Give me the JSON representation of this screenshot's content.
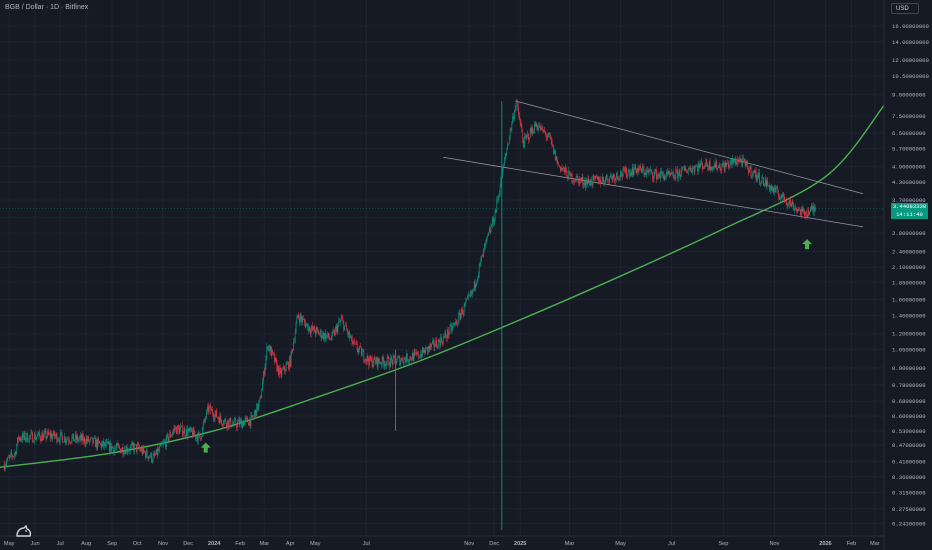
{
  "header": {
    "title": "BGB / Dollar · 1D · Bitfinex"
  },
  "price_scale": {
    "currency": "USD"
  },
  "last_price": {
    "value": "3.44083330",
    "countdown": "14:11:40"
  },
  "colors": {
    "background": "#161a25",
    "up": "#089981",
    "down": "#f23645",
    "curve": "#4caf50",
    "channel": "#9598a1",
    "arrow": "#4caf50",
    "text": "#b2b5be"
  },
  "icons": {
    "logo": "tradingview-logo-icon",
    "arrows": "up-arrow-icon"
  },
  "chart_data": {
    "type": "candlestick",
    "title": "BGB / Dollar · 1D · Bitfinex",
    "y_scale": "log",
    "ylim": [
      0.23,
      18
    ],
    "xlim": [
      "2023-04-20",
      "2026-03-12"
    ],
    "grid": true,
    "y_ticks": [
      "16.00000000",
      "14.00000000",
      "12.00000000",
      "10.50000000",
      "9.00000000",
      "7.50000000",
      "6.50000000",
      "5.70000000",
      "4.90000000",
      "4.30000000",
      "3.70000000",
      "3.20000000",
      "2.80000000",
      "2.40000000",
      "2.10000000",
      "1.85000000",
      "1.60000000",
      "1.40000000",
      "1.20000000",
      "1.05000000",
      "0.90000000",
      "0.78000000",
      "0.68000000",
      "0.60000000",
      "0.53000000",
      "0.47000000",
      "0.41000000",
      "0.36000000",
      "0.31500000",
      "0.27500000",
      "0.24300000"
    ],
    "x_ticks": [
      {
        "label": "May",
        "date": "2023-05-01"
      },
      {
        "label": "Jun",
        "date": "2023-06-01"
      },
      {
        "label": "Jul",
        "date": "2023-07-01"
      },
      {
        "label": "Aug",
        "date": "2023-08-01"
      },
      {
        "label": "Sep",
        "date": "2023-09-01"
      },
      {
        "label": "Oct",
        "date": "2023-10-01"
      },
      {
        "label": "Nov",
        "date": "2023-11-01"
      },
      {
        "label": "Dec",
        "date": "2023-12-01"
      },
      {
        "label": "2024",
        "date": "2024-01-01"
      },
      {
        "label": "Feb",
        "date": "2024-02-01"
      },
      {
        "label": "Mar",
        "date": "2024-03-01"
      },
      {
        "label": "Apr",
        "date": "2024-04-01"
      },
      {
        "label": "May",
        "date": "2024-05-01"
      },
      {
        "label": "Jul",
        "date": "2024-07-01"
      },
      {
        "label": "Nov",
        "date": "2024-11-01"
      },
      {
        "label": "Dec",
        "date": "2024-12-01"
      },
      {
        "label": "2025",
        "date": "2025-01-01"
      },
      {
        "label": "Mar",
        "date": "2025-03-01"
      },
      {
        "label": "May",
        "date": "2025-05-01"
      },
      {
        "label": "Jul",
        "date": "2025-07-01"
      },
      {
        "label": "Sep",
        "date": "2025-09-01"
      },
      {
        "label": "Nov",
        "date": "2025-11-01"
      },
      {
        "label": "2026",
        "date": "2026-01-01"
      },
      {
        "label": "Feb",
        "date": "2026-02-01"
      },
      {
        "label": "Mar",
        "date": "2026-03-01"
      }
    ],
    "price_path": [
      {
        "date": "2023-04-25",
        "price": 0.4
      },
      {
        "date": "2023-05-08",
        "price": 0.44
      },
      {
        "date": "2023-05-12",
        "price": 0.5
      },
      {
        "date": "2023-06-01",
        "price": 0.505
      },
      {
        "date": "2023-06-20",
        "price": 0.51
      },
      {
        "date": "2023-07-05",
        "price": 0.5
      },
      {
        "date": "2023-08-01",
        "price": 0.49
      },
      {
        "date": "2023-08-20",
        "price": 0.47
      },
      {
        "date": "2023-09-10",
        "price": 0.455
      },
      {
        "date": "2023-10-01",
        "price": 0.46
      },
      {
        "date": "2023-10-20",
        "price": 0.42
      },
      {
        "date": "2023-11-01",
        "price": 0.47
      },
      {
        "date": "2023-11-15",
        "price": 0.54
      },
      {
        "date": "2023-12-05",
        "price": 0.52
      },
      {
        "date": "2023-12-15",
        "price": 0.5
      },
      {
        "date": "2023-12-25",
        "price": 0.64
      },
      {
        "date": "2024-01-10",
        "price": 0.58
      },
      {
        "date": "2024-01-25",
        "price": 0.56
      },
      {
        "date": "2024-02-15",
        "price": 0.58
      },
      {
        "date": "2024-02-25",
        "price": 0.68
      },
      {
        "date": "2024-03-05",
        "price": 1.1
      },
      {
        "date": "2024-03-20",
        "price": 0.85
      },
      {
        "date": "2024-04-01",
        "price": 0.95
      },
      {
        "date": "2024-04-10",
        "price": 1.4
      },
      {
        "date": "2024-04-25",
        "price": 1.25
      },
      {
        "date": "2024-05-20",
        "price": 1.15
      },
      {
        "date": "2024-06-01",
        "price": 1.35
      },
      {
        "date": "2024-06-15",
        "price": 1.1
      },
      {
        "date": "2024-07-05",
        "price": 0.95
      },
      {
        "date": "2024-08-01",
        "price": 0.95
      },
      {
        "date": "2024-09-01",
        "price": 1.0
      },
      {
        "date": "2024-10-01",
        "price": 1.15
      },
      {
        "date": "2024-10-15",
        "price": 1.3
      },
      {
        "date": "2024-11-05",
        "price": 1.7
      },
      {
        "date": "2024-11-20",
        "price": 2.5
      },
      {
        "date": "2024-12-01",
        "price": 3.2
      },
      {
        "date": "2024-12-15",
        "price": 5.5
      },
      {
        "date": "2024-12-27",
        "price": 8.5
      },
      {
        "date": "2025-01-05",
        "price": 6.0
      },
      {
        "date": "2025-01-20",
        "price": 7.0
      },
      {
        "date": "2025-02-05",
        "price": 6.2
      },
      {
        "date": "2025-02-15",
        "price": 5.0
      },
      {
        "date": "2025-03-01",
        "price": 4.5
      },
      {
        "date": "2025-03-20",
        "price": 4.3
      },
      {
        "date": "2025-04-10",
        "price": 4.4
      },
      {
        "date": "2025-05-01",
        "price": 4.6
      },
      {
        "date": "2025-05-20",
        "price": 4.8
      },
      {
        "date": "2025-06-10",
        "price": 4.6
      },
      {
        "date": "2025-07-01",
        "price": 4.5
      },
      {
        "date": "2025-07-20",
        "price": 4.8
      },
      {
        "date": "2025-08-10",
        "price": 5.0
      },
      {
        "date": "2025-09-01",
        "price": 4.9
      },
      {
        "date": "2025-09-20",
        "price": 5.2
      },
      {
        "date": "2025-10-05",
        "price": 4.7
      },
      {
        "date": "2025-10-20",
        "price": 4.3
      },
      {
        "date": "2025-11-05",
        "price": 3.9
      },
      {
        "date": "2025-11-20",
        "price": 3.6
      },
      {
        "date": "2025-12-05",
        "price": 3.3
      },
      {
        "date": "2025-12-20",
        "price": 3.44
      }
    ],
    "spikes": [
      {
        "date": "2024-08-05",
        "high": 1.05,
        "low": 0.53
      },
      {
        "date": "2024-12-10",
        "high": 8.5,
        "low": 0.23
      }
    ],
    "trendlines": [
      {
        "name": "",
        "points": [
          {
            "date": "2024-12-27",
            "price": 8.5
          },
          {
            "date": "2026-02-15",
            "price": 3.9
          }
        ]
      },
      {
        "name": "",
        "points": [
          {
            "date": "2024-10-01",
            "price": 5.3
          },
          {
            "date": "2026-02-15",
            "price": 2.95
          }
        ]
      }
    ],
    "support_curve": [
      {
        "date": "2023-04-20",
        "price": 0.39
      },
      {
        "date": "2023-09-01",
        "price": 0.44
      },
      {
        "date": "2024-01-01",
        "price": 0.53
      },
      {
        "date": "2024-05-01",
        "price": 0.7
      },
      {
        "date": "2024-09-01",
        "price": 0.95
      },
      {
        "date": "2025-01-01",
        "price": 1.35
      },
      {
        "date": "2025-05-01",
        "price": 1.95
      },
      {
        "date": "2025-09-01",
        "price": 2.9
      },
      {
        "date": "2026-01-01",
        "price": 4.5
      },
      {
        "date": "2026-03-12",
        "price": 8.2
      }
    ],
    "markers": [
      {
        "type": "arrow-up",
        "date": "2023-12-22",
        "price": 0.46
      },
      {
        "type": "arrow-up",
        "date": "2025-12-10",
        "price": 2.55
      }
    ]
  }
}
